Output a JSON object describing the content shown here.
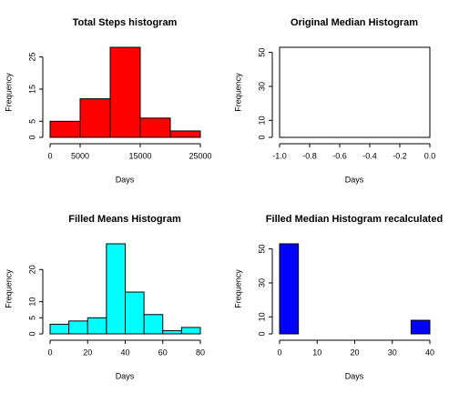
{
  "chart_data": [
    {
      "type": "histogram",
      "title": "Total Steps histogram",
      "xlabel": "Days",
      "ylabel": "Frequency",
      "color": "#ff0000",
      "bins": [
        0,
        5000,
        10000,
        15000,
        20000,
        25000
      ],
      "counts": [
        5,
        12,
        28,
        6,
        2
      ],
      "xlim": [
        0,
        25000
      ],
      "xticks": [
        0,
        5000,
        15000,
        25000
      ],
      "ylim": [
        0,
        28
      ],
      "yticks": [
        0,
        5,
        15,
        25
      ]
    },
    {
      "type": "histogram",
      "title": "Original Median Histogram",
      "xlabel": "Days",
      "ylabel": "Frequency",
      "color": "#ffffff",
      "bins": [
        -1,
        0
      ],
      "counts": [
        53
      ],
      "xlim": [
        -1,
        0
      ],
      "xticks": [
        {
          "value": -1,
          "label": "-1.0"
        },
        {
          "value": -0.8,
          "label": "-0.8"
        },
        {
          "value": -0.6,
          "label": "-0.6"
        },
        {
          "value": -0.4,
          "label": "-0.4"
        },
        {
          "value": -0.2,
          "label": "-0.2"
        },
        {
          "value": 0,
          "label": "0.0"
        }
      ],
      "ylim": [
        0,
        53
      ],
      "yticks": [
        0,
        10,
        30,
        50
      ]
    },
    {
      "type": "histogram",
      "title": "Filled Means Histogram",
      "xlabel": "Days",
      "ylabel": "Frequency",
      "color": "#00ffff",
      "bins": [
        0,
        10,
        20,
        30,
        40,
        50,
        60,
        70,
        80
      ],
      "counts": [
        3,
        4,
        5,
        28,
        13,
        6,
        1,
        2
      ],
      "xlim": [
        0,
        80
      ],
      "xticks": [
        0,
        20,
        40,
        60,
        80
      ],
      "ylim": [
        0,
        28
      ],
      "yticks": [
        0,
        5,
        10,
        20
      ]
    },
    {
      "type": "histogram",
      "title": "Filled Median Histogram recalculated",
      "xlabel": "Days",
      "ylabel": "Frequency",
      "color": "#0000ff",
      "bins": [
        0,
        5,
        10,
        15,
        20,
        25,
        30,
        35,
        40
      ],
      "counts": [
        53,
        0,
        0,
        0,
        0,
        0,
        0,
        8
      ],
      "xlim": [
        0,
        40
      ],
      "xticks": [
        0,
        10,
        20,
        30,
        40
      ],
      "ylim": [
        0,
        53
      ],
      "yticks": [
        0,
        10,
        30,
        50
      ]
    }
  ]
}
